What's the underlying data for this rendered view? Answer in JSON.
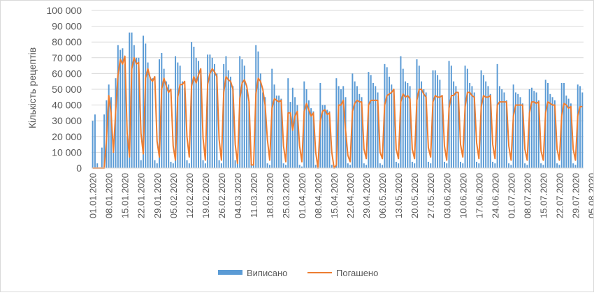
{
  "chart_data": {
    "type": "bar+line",
    "ylabel": "Кількість рецептів",
    "ylim": [
      0,
      100000
    ],
    "y_ticks": [
      0,
      10000,
      20000,
      30000,
      40000,
      50000,
      60000,
      70000,
      80000,
      90000,
      100000
    ],
    "y_tick_labels": [
      "0",
      "10 000",
      "20 000",
      "30 000",
      "40 000",
      "50 000",
      "60 000",
      "70 000",
      "80 000",
      "90 000",
      "100 000"
    ],
    "x_tick_labels": [
      "01.01.2020",
      "08.01.2020",
      "15.01.2020",
      "22.01.2020",
      "29.01.2020",
      "05.02.2020",
      "12.02.2020",
      "19.02.2020",
      "26.02.2020",
      "04.03.2020",
      "11.03.2020",
      "18.03.2020",
      "25.03.2020",
      "01.04.2020",
      "08.04.2020",
      "15.04.2020",
      "22.04.2020",
      "29.04.2020",
      "06.05.2020",
      "13.05.2020",
      "20.05.2020",
      "27.05.2020",
      "03.06.2020",
      "10.06.2020",
      "17.06.2020",
      "24.06.2020",
      "01.07.2020",
      "08.07.2020",
      "15.07.2020",
      "22.07.2020",
      "29.07.2020",
      "05.08.2020"
    ],
    "grid": true,
    "legend": "bottom",
    "series": [
      {
        "name": "Виписано",
        "kind": "bar",
        "color": "#5b9bd5",
        "values": [
          30000,
          34000,
          3000,
          0,
          13000,
          34000,
          43000,
          53000,
          45000,
          10000,
          57000,
          78000,
          75000,
          76000,
          66000,
          20000,
          86000,
          86000,
          78000,
          70000,
          70000,
          5000,
          84000,
          79000,
          67000,
          58000,
          57000,
          5000,
          3000,
          69000,
          73000,
          63000,
          55000,
          53000,
          4000,
          3000,
          71000,
          67000,
          65000,
          55000,
          51000,
          5000,
          3000,
          80000,
          77000,
          70000,
          68000,
          62000,
          5000,
          3000,
          72000,
          72000,
          70000,
          66000,
          60000,
          5000,
          3000,
          66000,
          71000,
          62000,
          58000,
          52000,
          5000,
          3000,
          71000,
          69000,
          65000,
          50000,
          42000,
          3000,
          2000,
          78000,
          74000,
          60000,
          48000,
          45000,
          3000,
          2000,
          63000,
          53000,
          46000,
          46000,
          44000,
          3000,
          2000,
          57000,
          42000,
          51000,
          45000,
          40000,
          2000,
          1000,
          55000,
          50000,
          43000,
          38000,
          36000,
          2000,
          1000,
          54000,
          40000,
          40000,
          37000,
          36000,
          2000,
          1000,
          57000,
          52000,
          50000,
          52000,
          45000,
          3000,
          2000,
          60000,
          55000,
          52000,
          47000,
          45000,
          3000,
          2000,
          61000,
          59000,
          54000,
          52000,
          48000,
          3000,
          2000,
          66000,
          64000,
          58000,
          53000,
          50000,
          4000,
          3000,
          71000,
          63000,
          55000,
          54000,
          52000,
          4000,
          3000,
          69000,
          65000,
          55000,
          50000,
          48000,
          4000,
          3000,
          62000,
          62000,
          59000,
          56000,
          46000,
          4000,
          3000,
          68000,
          65000,
          55000,
          52000,
          46000,
          4000,
          3000,
          65000,
          63000,
          54000,
          52000,
          48000,
          4000,
          3000,
          62000,
          59000,
          55000,
          52000,
          47000,
          4000,
          3000,
          66000,
          52000,
          50000,
          48000,
          43000,
          3000,
          2000,
          53000,
          48000,
          47000,
          45000,
          41000,
          3000,
          2000,
          50000,
          51000,
          49000,
          48000,
          43000,
          3000,
          2000,
          56000,
          54000,
          47000,
          45000,
          43000,
          3000,
          2000,
          54000,
          54000,
          46000,
          44000,
          41000,
          3000,
          2000,
          53000,
          52000,
          48000
        ]
      },
      {
        "name": "Погашено",
        "kind": "line",
        "color": "#ed7d31",
        "values": [
          0,
          0,
          0,
          0,
          0,
          0,
          18000,
          46000,
          35000,
          10000,
          36000,
          59000,
          69000,
          66000,
          71000,
          22000,
          7000,
          63000,
          70000,
          66000,
          67000,
          22000,
          9000,
          57000,
          63000,
          57000,
          55000,
          58000,
          17000,
          7000,
          50000,
          57000,
          52000,
          48000,
          50000,
          14000,
          5000,
          45000,
          53000,
          53000,
          55000,
          20000,
          7000,
          52000,
          58000,
          54000,
          59000,
          63000,
          19000,
          5000,
          53000,
          60000,
          63000,
          61000,
          58000,
          18000,
          5000,
          48000,
          58000,
          56000,
          55000,
          50000,
          15000,
          3000,
          44000,
          54000,
          56000,
          52000,
          42000,
          2000,
          2000,
          47000,
          57000,
          55000,
          50000,
          40000,
          18000,
          5000,
          38000,
          44000,
          43000,
          42000,
          43000,
          14000,
          4000,
          35000,
          35000,
          24000,
          33000,
          36000,
          14000,
          4000,
          36000,
          41000,
          37000,
          33000,
          35000,
          10000,
          0,
          30000,
          36000,
          37000,
          34000,
          35000,
          10000,
          0,
          2000,
          40000,
          40000,
          43000,
          24000,
          8000,
          4000,
          36000,
          41000,
          43000,
          42000,
          42000,
          12000,
          6000,
          40000,
          43000,
          43000,
          43000,
          43000,
          10000,
          6000,
          40000,
          46000,
          47000,
          48000,
          50000,
          12000,
          6000,
          42000,
          47000,
          45000,
          46000,
          44000,
          12000,
          6000,
          43000,
          50000,
          50000,
          47000,
          45000,
          13000,
          7000,
          42000,
          46000,
          45000,
          45000,
          46000,
          14000,
          5000,
          38000,
          46000,
          46000,
          48000,
          48000,
          15000,
          7000,
          39000,
          48000,
          48000,
          46000,
          45000,
          16000,
          6000,
          39000,
          46000,
          45000,
          45000,
          46000,
          15000,
          6000,
          40000,
          42000,
          42000,
          42000,
          42000,
          14000,
          5000,
          33000,
          40000,
          40000,
          40000,
          40000,
          12000,
          5000,
          35000,
          42000,
          42000,
          41000,
          42000,
          11000,
          5000,
          35000,
          42000,
          41000,
          40000,
          40000,
          12000,
          5000,
          33000,
          41000,
          40000,
          38000,
          39000,
          12000,
          5000,
          33000,
          39000,
          39000
        ]
      }
    ]
  }
}
